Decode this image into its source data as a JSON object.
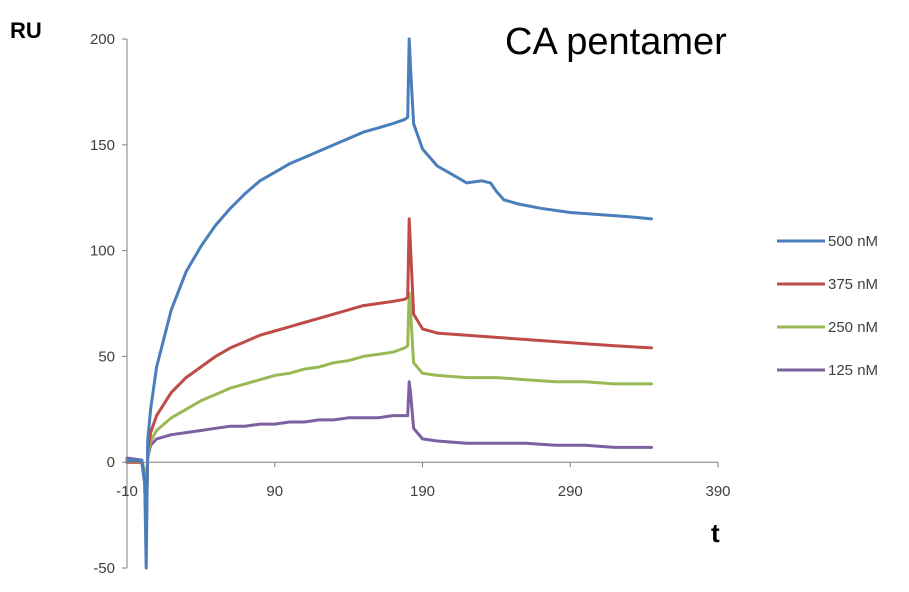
{
  "chart_data": {
    "type": "line",
    "title": "CA pentamer",
    "xlabel": "t",
    "ylabel": "RU",
    "xlim": [
      -10,
      390
    ],
    "ylim": [
      -50,
      200
    ],
    "xticks": [
      -10,
      90,
      190,
      290,
      390
    ],
    "yticks": [
      -50,
      0,
      50,
      100,
      150,
      200
    ],
    "xtick_labels": [
      "-10",
      "90",
      "190",
      "290",
      "390"
    ],
    "ytick_labels": [
      "-50",
      "0",
      "50",
      "100",
      "150",
      "200"
    ],
    "grid": false,
    "legend_position": "right",
    "series": [
      {
        "name": "500 nM",
        "color": "#4a7ebb",
        "points": [
          [
            -10,
            1
          ],
          [
            0,
            1
          ],
          [
            2,
            -10
          ],
          [
            3,
            -50
          ],
          [
            4,
            10
          ],
          [
            6,
            25
          ],
          [
            10,
            45
          ],
          [
            20,
            72
          ],
          [
            30,
            90
          ],
          [
            40,
            102
          ],
          [
            50,
            112
          ],
          [
            60,
            120
          ],
          [
            70,
            127
          ],
          [
            80,
            133
          ],
          [
            90,
            137
          ],
          [
            100,
            141
          ],
          [
            110,
            144
          ],
          [
            120,
            147
          ],
          [
            130,
            150
          ],
          [
            140,
            153
          ],
          [
            150,
            156
          ],
          [
            160,
            158
          ],
          [
            170,
            160
          ],
          [
            178,
            162
          ],
          [
            180,
            163
          ],
          [
            181,
            200
          ],
          [
            182,
            185
          ],
          [
            184,
            160
          ],
          [
            190,
            148
          ],
          [
            200,
            140
          ],
          [
            210,
            136
          ],
          [
            220,
            132
          ],
          [
            230,
            133
          ],
          [
            236,
            132
          ],
          [
            240,
            128
          ],
          [
            245,
            124
          ],
          [
            255,
            122
          ],
          [
            270,
            120
          ],
          [
            290,
            118
          ],
          [
            310,
            117
          ],
          [
            330,
            116
          ],
          [
            345,
            115
          ]
        ]
      },
      {
        "name": "375 nM",
        "color": "#be4b48",
        "points": [
          [
            -10,
            0
          ],
          [
            0,
            0
          ],
          [
            2,
            -10
          ],
          [
            3,
            -35
          ],
          [
            4,
            5
          ],
          [
            6,
            14
          ],
          [
            10,
            22
          ],
          [
            20,
            33
          ],
          [
            30,
            40
          ],
          [
            40,
            45
          ],
          [
            50,
            50
          ],
          [
            60,
            54
          ],
          [
            70,
            57
          ],
          [
            80,
            60
          ],
          [
            90,
            62
          ],
          [
            100,
            64
          ],
          [
            110,
            66
          ],
          [
            120,
            68
          ],
          [
            130,
            70
          ],
          [
            140,
            72
          ],
          [
            150,
            74
          ],
          [
            160,
            75
          ],
          [
            170,
            76
          ],
          [
            178,
            77
          ],
          [
            180,
            78
          ],
          [
            181,
            115
          ],
          [
            182,
            100
          ],
          [
            184,
            70
          ],
          [
            190,
            63
          ],
          [
            200,
            61
          ],
          [
            220,
            60
          ],
          [
            240,
            59
          ],
          [
            260,
            58
          ],
          [
            280,
            57
          ],
          [
            300,
            56
          ],
          [
            320,
            55
          ],
          [
            345,
            54
          ]
        ]
      },
      {
        "name": "250 nM",
        "color": "#98b954",
        "points": [
          [
            -10,
            0
          ],
          [
            0,
            0
          ],
          [
            2,
            -5
          ],
          [
            3,
            -28
          ],
          [
            4,
            3
          ],
          [
            6,
            10
          ],
          [
            10,
            15
          ],
          [
            20,
            21
          ],
          [
            30,
            25
          ],
          [
            40,
            29
          ],
          [
            50,
            32
          ],
          [
            60,
            35
          ],
          [
            70,
            37
          ],
          [
            80,
            39
          ],
          [
            90,
            41
          ],
          [
            100,
            42
          ],
          [
            110,
            44
          ],
          [
            120,
            45
          ],
          [
            130,
            47
          ],
          [
            140,
            48
          ],
          [
            150,
            50
          ],
          [
            160,
            51
          ],
          [
            170,
            52
          ],
          [
            178,
            54
          ],
          [
            180,
            55
          ],
          [
            181,
            80
          ],
          [
            182,
            70
          ],
          [
            184,
            47
          ],
          [
            190,
            42
          ],
          [
            200,
            41
          ],
          [
            220,
            40
          ],
          [
            240,
            40
          ],
          [
            260,
            39
          ],
          [
            280,
            38
          ],
          [
            300,
            38
          ],
          [
            320,
            37
          ],
          [
            345,
            37
          ]
        ]
      },
      {
        "name": "125 nM",
        "color": "#7d60a0",
        "points": [
          [
            -10,
            2
          ],
          [
            0,
            1
          ],
          [
            2,
            -5
          ],
          [
            3,
            -20
          ],
          [
            4,
            2
          ],
          [
            6,
            8
          ],
          [
            10,
            11
          ],
          [
            20,
            13
          ],
          [
            30,
            14
          ],
          [
            40,
            15
          ],
          [
            50,
            16
          ],
          [
            60,
            17
          ],
          [
            70,
            17
          ],
          [
            80,
            18
          ],
          [
            90,
            18
          ],
          [
            100,
            19
          ],
          [
            110,
            19
          ],
          [
            120,
            20
          ],
          [
            130,
            20
          ],
          [
            140,
            21
          ],
          [
            150,
            21
          ],
          [
            160,
            21
          ],
          [
            170,
            22
          ],
          [
            178,
            22
          ],
          [
            180,
            22
          ],
          [
            181,
            38
          ],
          [
            182,
            32
          ],
          [
            184,
            16
          ],
          [
            190,
            11
          ],
          [
            200,
            10
          ],
          [
            220,
            9
          ],
          [
            240,
            9
          ],
          [
            260,
            9
          ],
          [
            280,
            8
          ],
          [
            300,
            8
          ],
          [
            320,
            7
          ],
          [
            345,
            7
          ]
        ]
      }
    ]
  }
}
